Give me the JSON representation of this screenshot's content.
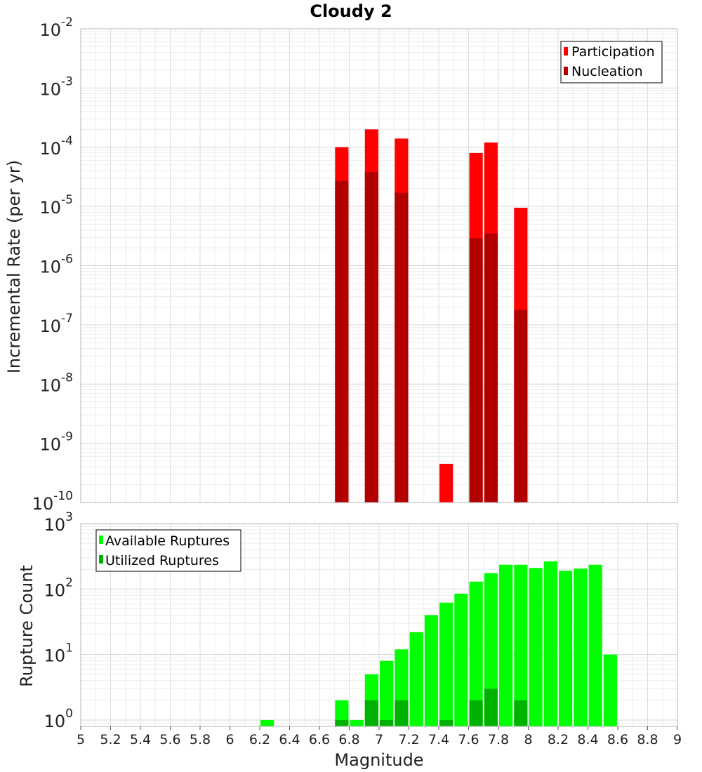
{
  "colors": {
    "participation": "#ff0000",
    "nucleation": "#b20000",
    "available": "#00ff00",
    "utilized": "#00b200",
    "grid": "#e6e6e6",
    "frame": "#b4b4b4"
  },
  "chart_data": [
    {
      "type": "bar",
      "title": "Cloudy 2",
      "xlabel": "Magnitude",
      "ylabel": "Incremental Rate (per yr)",
      "yscale": "log",
      "xlim": [
        5,
        9
      ],
      "ylim": [
        1e-10,
        0.01
      ],
      "grid": true,
      "legend_position": "top-right",
      "ytick_labels": [
        "10^-10",
        "10^-9",
        "10^-8",
        "10^-7",
        "10^-6",
        "10^-5",
        "10^-4",
        "10^-3",
        "10^-2"
      ],
      "bar_width": 0.09,
      "series": [
        {
          "name": "Participation",
          "x": [
            6.75,
            6.95,
            7.15,
            7.45,
            7.65,
            7.75,
            7.95
          ],
          "values": [
            0.0001,
            0.0002,
            0.00014,
            4.5e-10,
            8e-05,
            0.00012,
            9.5e-06
          ]
        },
        {
          "name": "Nucleation",
          "x": [
            6.75,
            6.95,
            7.15,
            7.45,
            7.65,
            7.75,
            7.95
          ],
          "values": [
            2.7e-05,
            3.8e-05,
            1.7e-05,
            null,
            2.9e-06,
            3.5e-06,
            1.8e-07
          ]
        }
      ]
    },
    {
      "type": "bar",
      "xlabel": "Magnitude",
      "ylabel": "Rupture Count",
      "yscale": "log",
      "xlim": [
        5,
        9
      ],
      "ylim": [
        0.8,
        1000
      ],
      "grid": true,
      "legend_position": "top-left",
      "xtick_labels": [
        "5",
        "5.2",
        "5.4",
        "5.6",
        "5.8",
        "6",
        "6.2",
        "6.4",
        "6.6",
        "6.8",
        "7",
        "7.2",
        "7.4",
        "7.6",
        "7.8",
        "8",
        "8.2",
        "8.4",
        "8.6",
        "8.8",
        "9"
      ],
      "ytick_labels": [
        "10^0",
        "10^1",
        "10^2",
        "10^3"
      ],
      "bar_width": 0.09,
      "series": [
        {
          "name": "Available Ruptures",
          "x": [
            6.25,
            6.75,
            6.85,
            6.95,
            7.05,
            7.15,
            7.25,
            7.35,
            7.45,
            7.55,
            7.65,
            7.75,
            7.85,
            7.95,
            8.05,
            8.15,
            8.25,
            8.35,
            8.45,
            8.55
          ],
          "values": [
            1,
            2,
            1,
            5,
            8,
            12,
            22,
            40,
            62,
            85,
            130,
            175,
            235,
            235,
            210,
            265,
            190,
            205,
            235,
            10
          ]
        },
        {
          "name": "Utilized Ruptures",
          "x": [
            6.75,
            6.95,
            7.05,
            7.15,
            7.45,
            7.65,
            7.75,
            7.95
          ],
          "values": [
            1,
            2,
            1,
            2,
            1,
            2,
            3,
            2
          ]
        }
      ]
    }
  ]
}
